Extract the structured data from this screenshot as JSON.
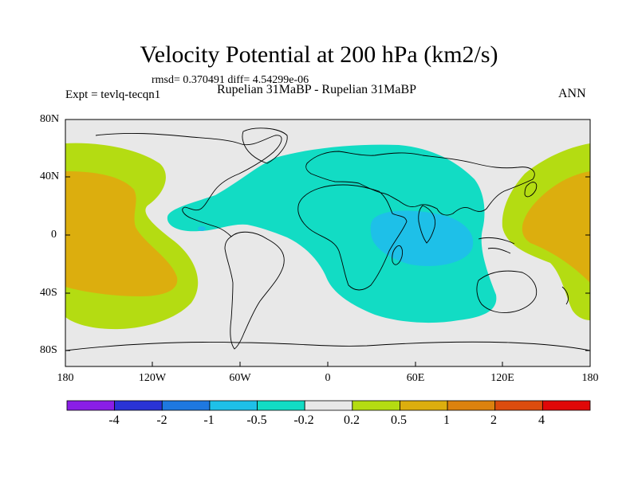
{
  "title": "Velocity Potential at 200 hPa (km2/s)",
  "stats": "rmsd= 0.370491 diff= 4.54299e-06",
  "expt": "Expt = tevlq-tecqn1",
  "subtitle": "Rupelian  31MaBP - Rupelian  31MaBP",
  "season": "ANN",
  "y_axis_labels": [
    "80N",
    "40N",
    "0",
    "40S",
    "80S"
  ],
  "x_axis_labels": [
    "180",
    "120W",
    "60W",
    "0",
    "60E",
    "120E",
    "180"
  ],
  "colorbar": {
    "labels": [
      "-4",
      "-2",
      "-1",
      "-0.5",
      "-0.2",
      "0.2",
      "0.5",
      "1",
      "2",
      "4"
    ],
    "colors": [
      "#8a1ee6",
      "#2a33d6",
      "#1e78e0",
      "#1ec0e8",
      "#12dcc4",
      "#e8e8e8",
      "#b4dc12",
      "#dcae0e",
      "#dc820e",
      "#dc4c0e",
      "#e00808"
    ]
  },
  "colors": {
    "background_field": "#e8e8e8",
    "negative_weak": "#12dcc4",
    "negative_moderate": "#1ec0e8",
    "positive_weak": "#b4dc12",
    "positive_moderate": "#dcae0e"
  }
}
